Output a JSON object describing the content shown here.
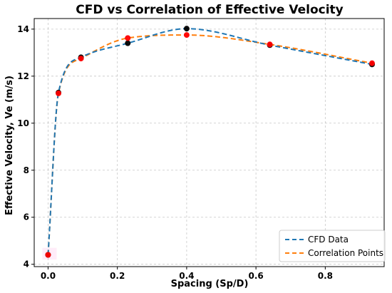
{
  "chart_data": {
    "type": "line",
    "title": "CFD vs Correlation of Effective Velocity",
    "xlabel": "Spacing (Sp/D)",
    "ylabel": "Effective Velocity, Ve (m/s)",
    "xlim": [
      -0.04,
      0.97
    ],
    "ylim": [
      3.9,
      14.45
    ],
    "xticks": [
      0.0,
      0.2,
      0.4,
      0.6,
      0.8
    ],
    "xtick_labels": [
      "0.0",
      "0.2",
      "0.4",
      "0.6",
      "0.8"
    ],
    "yticks": [
      4,
      6,
      8,
      10,
      12,
      14
    ],
    "ytick_labels": [
      "4",
      "6",
      "8",
      "10",
      "12",
      "14"
    ],
    "grid": true,
    "legend_position": "lower-right",
    "series": [
      {
        "name": "CFD Data",
        "color": "#1f77b4",
        "line_style": "dashed",
        "marker_color": "#000000",
        "x": [
          0.0,
          0.03,
          0.095,
          0.23,
          0.4,
          0.64,
          0.935
        ],
        "y": [
          4.4,
          11.3,
          12.8,
          13.4,
          14.02,
          13.32,
          12.5
        ]
      },
      {
        "name": "Correlation Points",
        "color": "#ff7f0e",
        "line_style": "dashed",
        "marker_color": "#ff0000",
        "x": [
          0.0,
          0.03,
          0.095,
          0.23,
          0.4,
          0.64,
          0.935
        ],
        "y": [
          4.4,
          11.27,
          12.75,
          13.62,
          13.75,
          13.35,
          12.55
        ]
      }
    ]
  }
}
